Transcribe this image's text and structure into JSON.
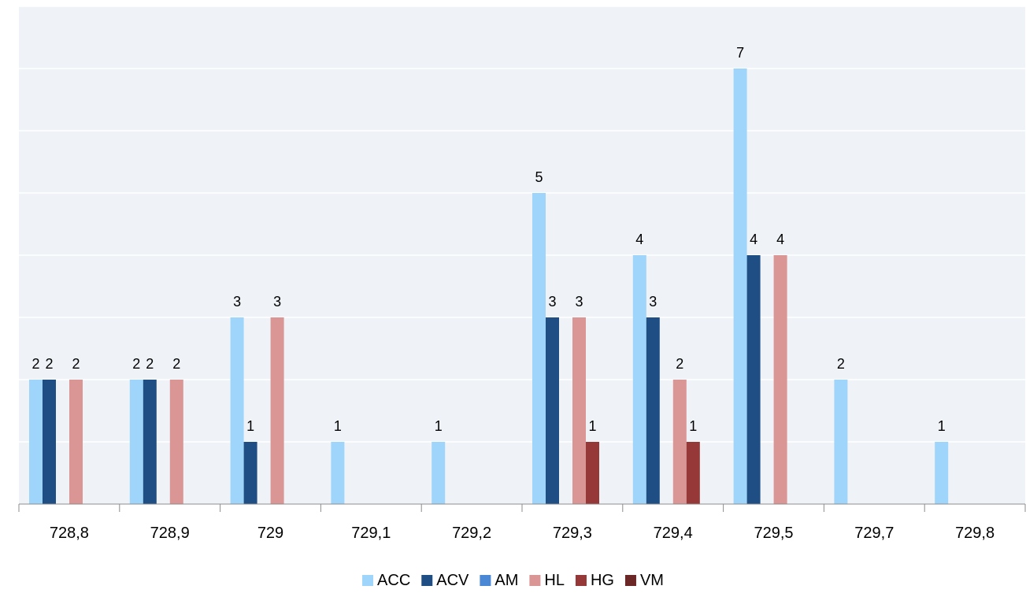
{
  "chart_data": {
    "type": "bar",
    "categories": [
      "728,8",
      "728,9",
      "729",
      "729,1",
      "729,2",
      "729,3",
      "729,4",
      "729,5",
      "729,7",
      "729,8"
    ],
    "series": [
      {
        "name": "ACC",
        "color": "#9fd5fb",
        "values": [
          2,
          2,
          3,
          1,
          1,
          5,
          4,
          7,
          2,
          1
        ]
      },
      {
        "name": "ACV",
        "color": "#1f4e85",
        "values": [
          2,
          2,
          1,
          0,
          0,
          3,
          3,
          4,
          0,
          0
        ]
      },
      {
        "name": "AM",
        "color": "#4a88d6",
        "values": [
          0,
          0,
          0,
          0,
          0,
          0,
          0,
          0,
          0,
          0
        ]
      },
      {
        "name": "HL",
        "color": "#da9595",
        "values": [
          2,
          2,
          3,
          0,
          0,
          3,
          2,
          4,
          0,
          0
        ]
      },
      {
        "name": "HG",
        "color": "#963838",
        "values": [
          0,
          0,
          0,
          0,
          0,
          1,
          1,
          0,
          0,
          0
        ]
      },
      {
        "name": "VM",
        "color": "#6b2626",
        "values": [
          0,
          0,
          0,
          0,
          0,
          0,
          0,
          0,
          0,
          0
        ]
      }
    ],
    "ylim": [
      0,
      8
    ],
    "grid": true,
    "plot_background": "#eff3f8",
    "gridline_color": "#ffffff",
    "data_labels": true,
    "legend_position": "bottom",
    "title": "",
    "xlabel": "",
    "ylabel": ""
  }
}
